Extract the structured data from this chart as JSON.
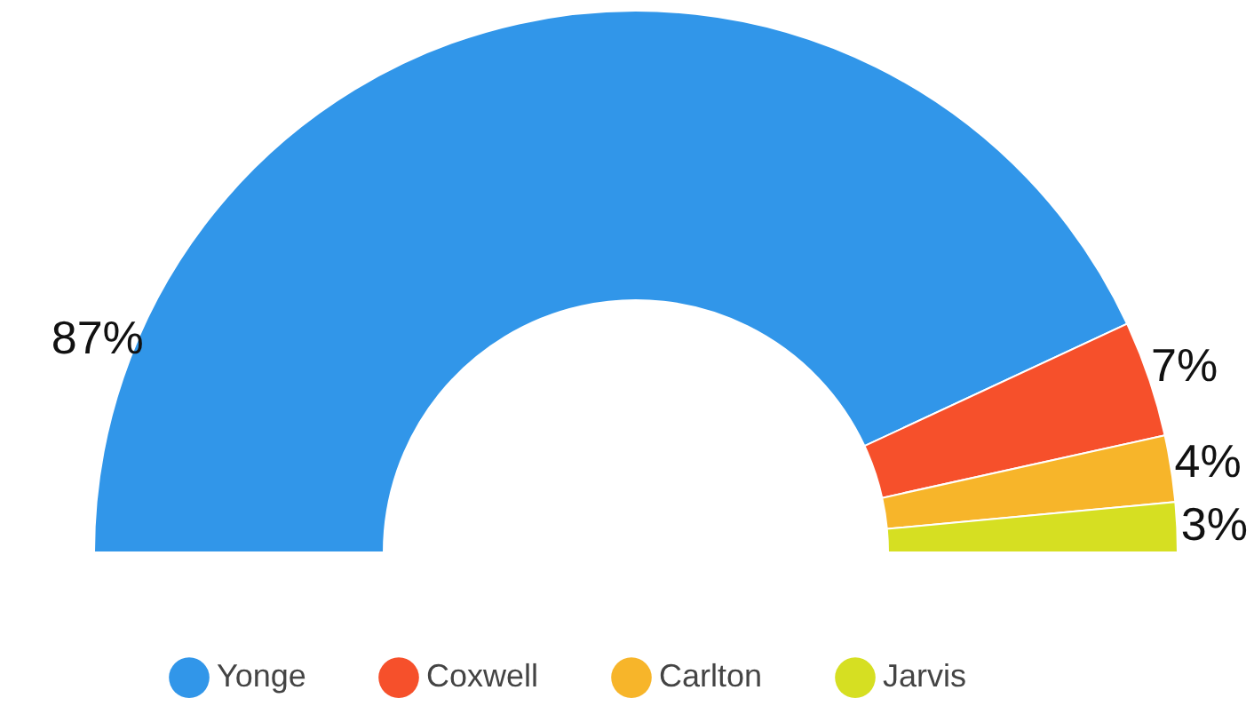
{
  "chart_data": {
    "type": "donut",
    "categories": [
      "Yonge",
      "Coxwell",
      "Carlton",
      "Jarvis"
    ],
    "values": [
      87,
      7,
      4,
      3
    ],
    "colors": [
      "#3196e9",
      "#f6502b",
      "#f7b52a",
      "#d6df22"
    ],
    "value_labels": [
      "87%",
      "7%",
      "4%",
      "3%"
    ],
    "legend": "bottom"
  }
}
